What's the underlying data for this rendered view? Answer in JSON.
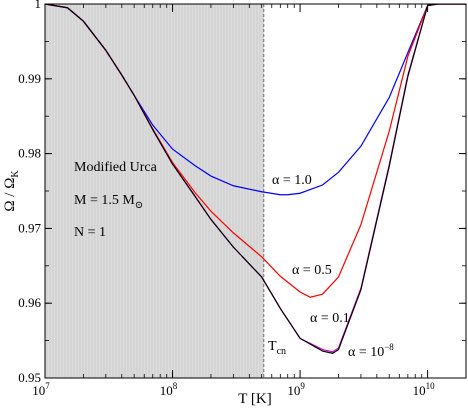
{
  "chart_data": {
    "type": "line",
    "xlabel": "T [K]",
    "ylabel": "Ω / Ω_K",
    "x_scale": "log",
    "xlim": [
      10000000.0,
      20000000000.0
    ],
    "ylim": [
      0.95,
      1.0
    ],
    "x_ticks": [
      {
        "value": 10000000.0,
        "base": "10",
        "exp": "7"
      },
      {
        "value": 100000000.0,
        "base": "10",
        "exp": "8"
      },
      {
        "value": 1000000000.0,
        "base": "10",
        "exp": "9"
      },
      {
        "value": 10000000000.0,
        "base": "10",
        "exp": "10"
      }
    ],
    "y_ticks": [
      {
        "value": 0.95,
        "label": "0.95"
      },
      {
        "value": 0.96,
        "label": "0.96"
      },
      {
        "value": 0.97,
        "label": "0.97"
      },
      {
        "value": 0.98,
        "label": "0.98"
      },
      {
        "value": 0.99,
        "label": "0.99"
      },
      {
        "value": 1.0,
        "label": "1"
      }
    ],
    "shaded_region": {
      "x_from": 10000000.0,
      "x_to": 520000000.0
    },
    "T_cn": {
      "value": 520000000.0,
      "label": "T",
      "sub": "cn"
    },
    "annotations": {
      "line1": "Modified Urca",
      "line2_main": "M = 1.5 M",
      "line2_sub": "⊙",
      "line3": "N = 1"
    },
    "series": [
      {
        "label_main": "α = 1.0",
        "label_exp": "",
        "color": "#0000ff",
        "points": [
          [
            10000000.0,
            1.0
          ],
          [
            15000000.0,
            0.9995
          ],
          [
            20000000.0,
            0.9977
          ],
          [
            30000000.0,
            0.9938
          ],
          [
            40000000.0,
            0.9905
          ],
          [
            50000000.0,
            0.9878
          ],
          [
            70000000.0,
            0.9838
          ],
          [
            100000000.0,
            0.9806
          ],
          [
            150000000.0,
            0.9784
          ],
          [
            200000000.0,
            0.977
          ],
          [
            300000000.0,
            0.9757
          ],
          [
            500000000.0,
            0.9749
          ],
          [
            700000000.0,
            0.9745
          ],
          [
            800000000.0,
            0.9745
          ],
          [
            1000000000.0,
            0.9747
          ],
          [
            1500000000.0,
            0.9758
          ],
          [
            2000000000.0,
            0.9775
          ],
          [
            3000000000.0,
            0.981
          ],
          [
            5000000000.0,
            0.9875
          ],
          [
            7000000000.0,
            0.9935
          ],
          [
            10000000000.0,
            0.9998
          ],
          [
            12000000000.0,
            1.0
          ],
          [
            20000000000.0,
            1.0
          ]
        ]
      },
      {
        "label_main": "α = 0.5",
        "label_exp": "",
        "color": "#ff0000",
        "points": [
          [
            10000000.0,
            1.0
          ],
          [
            15000000.0,
            0.9995
          ],
          [
            20000000.0,
            0.9977
          ],
          [
            30000000.0,
            0.9938
          ],
          [
            40000000.0,
            0.9905
          ],
          [
            50000000.0,
            0.9878
          ],
          [
            70000000.0,
            0.9833
          ],
          [
            100000000.0,
            0.9788
          ],
          [
            150000000.0,
            0.9748
          ],
          [
            200000000.0,
            0.9723
          ],
          [
            300000000.0,
            0.9694
          ],
          [
            500000000.0,
            0.9662
          ],
          [
            700000000.0,
            0.9636
          ],
          [
            1000000000.0,
            0.9615
          ],
          [
            1200000000.0,
            0.9608
          ],
          [
            1500000000.0,
            0.9612
          ],
          [
            2000000000.0,
            0.9635
          ],
          [
            3000000000.0,
            0.9705
          ],
          [
            5000000000.0,
            0.983
          ],
          [
            7000000000.0,
            0.993
          ],
          [
            10000000000.0,
            0.9998
          ],
          [
            12000000000.0,
            1.0
          ],
          [
            20000000000.0,
            1.0
          ]
        ]
      },
      {
        "label_main": "α = 0.1",
        "label_exp": "",
        "color": "#cc00cc",
        "points": [
          [
            10000000.0,
            1.0
          ],
          [
            15000000.0,
            0.9995
          ],
          [
            20000000.0,
            0.9977
          ],
          [
            30000000.0,
            0.9938
          ],
          [
            40000000.0,
            0.9905
          ],
          [
            50000000.0,
            0.9878
          ],
          [
            70000000.0,
            0.9832
          ],
          [
            100000000.0,
            0.9786
          ],
          [
            150000000.0,
            0.9743
          ],
          [
            200000000.0,
            0.9712
          ],
          [
            300000000.0,
            0.9675
          ],
          [
            500000000.0,
            0.9635
          ],
          [
            700000000.0,
            0.9593
          ],
          [
            1000000000.0,
            0.9553
          ],
          [
            1500000000.0,
            0.9538
          ],
          [
            1800000000.0,
            0.9535
          ],
          [
            2000000000.0,
            0.954
          ],
          [
            3000000000.0,
            0.962
          ],
          [
            5000000000.0,
            0.9785
          ],
          [
            7000000000.0,
            0.9905
          ],
          [
            10000000000.0,
            0.9998
          ],
          [
            12000000000.0,
            1.0
          ],
          [
            20000000000.0,
            1.0
          ]
        ]
      },
      {
        "label_main": "α = 10",
        "label_exp": "−8",
        "color": "#000000",
        "points": [
          [
            10000000.0,
            1.0
          ],
          [
            15000000.0,
            0.9995
          ],
          [
            20000000.0,
            0.9977
          ],
          [
            30000000.0,
            0.9938
          ],
          [
            40000000.0,
            0.9905
          ],
          [
            50000000.0,
            0.9878
          ],
          [
            70000000.0,
            0.9832
          ],
          [
            100000000.0,
            0.9786
          ],
          [
            150000000.0,
            0.9743
          ],
          [
            200000000.0,
            0.9712
          ],
          [
            300000000.0,
            0.9675
          ],
          [
            500000000.0,
            0.9635
          ],
          [
            700000000.0,
            0.9593
          ],
          [
            1000000000.0,
            0.9553
          ],
          [
            1500000000.0,
            0.9536
          ],
          [
            1800000000.0,
            0.9533
          ],
          [
            2000000000.0,
            0.9538
          ],
          [
            3000000000.0,
            0.9618
          ],
          [
            5000000000.0,
            0.9783
          ],
          [
            7000000000.0,
            0.9903
          ],
          [
            10000000000.0,
            0.9998
          ],
          [
            12000000000.0,
            1.0
          ],
          [
            20000000000.0,
            1.0
          ]
        ]
      }
    ]
  }
}
